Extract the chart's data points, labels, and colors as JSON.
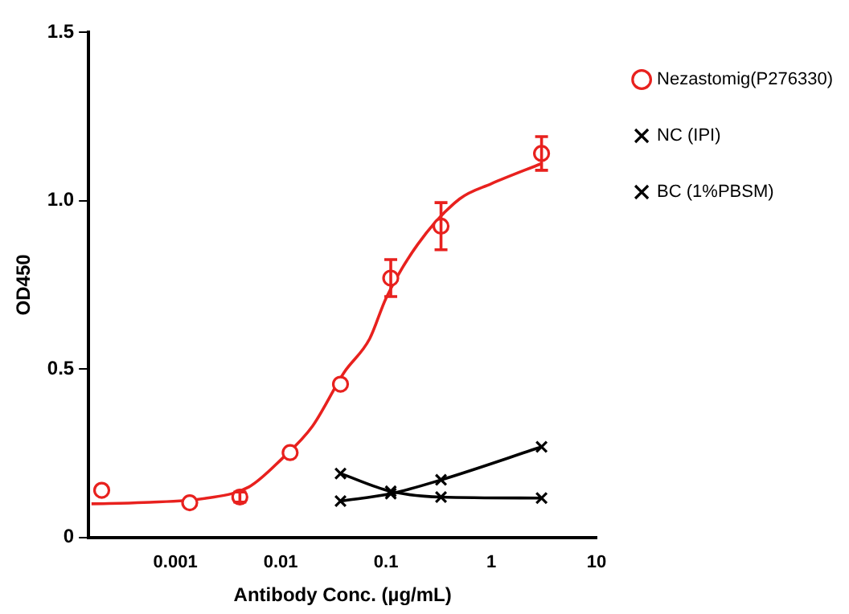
{
  "chart_data": {
    "type": "scatter",
    "xlabel": "Antibody Conc. (µg/mL)",
    "ylabel": "OD450",
    "log": "x",
    "grid": false,
    "legend": "right",
    "xlim": [
      0.00015,
      10
    ],
    "xticks": [
      0.001,
      0.01,
      0.1,
      1,
      10
    ],
    "ylim": [
      0,
      1.5
    ],
    "yticks": [
      0,
      0.5,
      {
        "value": 1,
        "label": "1.0"
      },
      1.5
    ],
    "series": [
      {
        "name": "Nezastomig(P276330)",
        "type": "scatter",
        "color": "#e8211e",
        "marker": "circle",
        "x": [
          0.0002,
          0.00137,
          0.0041,
          0.0123,
          0.037,
          0.111,
          0.333,
          3
        ],
        "values": [
          0.14,
          0.103,
          0.12,
          0.252,
          0.455,
          0.77,
          0.924,
          1.14
        ],
        "errors": [
          null,
          null,
          0.015,
          null,
          null,
          0.055,
          0.07,
          0.05
        ]
      },
      {
        "type": "line",
        "color": "#e8211e",
        "marker": "none",
        "x": [
          0.00016,
          0.0005,
          0.002,
          0.005,
          0.01,
          0.02,
          0.04,
          0.07,
          0.1,
          0.2,
          0.5,
          1,
          3
        ],
        "values": [
          0.1,
          0.104,
          0.117,
          0.15,
          0.23,
          0.33,
          0.49,
          0.59,
          0.71,
          0.87,
          1.005,
          1.05,
          1.11
        ]
      },
      {
        "name": "NC (IPI)",
        "type": "line",
        "color": "#000000",
        "marker": "cross",
        "x": [
          0.037,
          0.111,
          0.333,
          3
        ],
        "values": [
          0.108,
          0.13,
          0.171,
          0.269
        ]
      },
      {
        "name": "BC (1%PBSM)",
        "type": "line",
        "color": "#000000",
        "marker": "cross",
        "x": [
          0.037,
          0.111,
          0.333,
          3
        ],
        "values": [
          0.19,
          0.137,
          0.12,
          0.117
        ]
      }
    ]
  }
}
